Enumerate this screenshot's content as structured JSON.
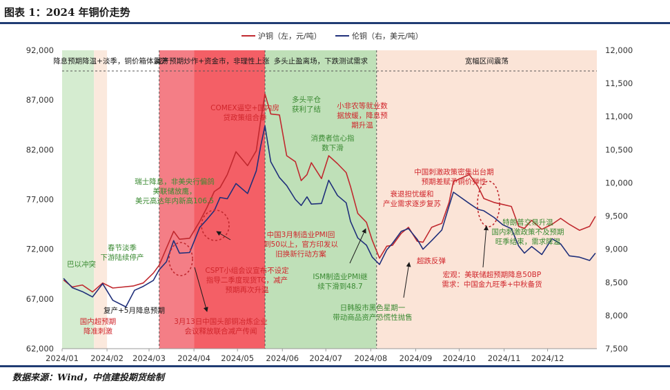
{
  "title": "图表 1：2024 年铜价走势",
  "footer": "数据来源：Wind，中信建投期货绘制",
  "chart_data": {
    "type": "line",
    "series": [
      {
        "name": "沪铜（左，元/吨）",
        "axis": "left",
        "color": "#c0282e",
        "points": [
          [
            "2024-01-02",
            68900
          ],
          [
            "2024-01-08",
            68200
          ],
          [
            "2024-01-15",
            68400
          ],
          [
            "2024-01-22",
            67700
          ],
          [
            "2024-01-29",
            68600
          ],
          [
            "2024-02-05",
            68100
          ],
          [
            "2024-02-19",
            68300
          ],
          [
            "2024-02-26",
            68600
          ],
          [
            "2024-03-04",
            69600
          ],
          [
            "2024-03-08",
            70400
          ],
          [
            "2024-03-13",
            72100
          ],
          [
            "2024-03-18",
            73800
          ],
          [
            "2024-03-22",
            73000
          ],
          [
            "2024-03-29",
            73100
          ],
          [
            "2024-04-05",
            74800
          ],
          [
            "2024-04-10",
            76200
          ],
          [
            "2024-04-15",
            77800
          ],
          [
            "2024-04-19",
            78200
          ],
          [
            "2024-04-24",
            79500
          ],
          [
            "2024-04-30",
            81800
          ],
          [
            "2024-05-08",
            80400
          ],
          [
            "2024-05-14",
            81900
          ],
          [
            "2024-05-17",
            84900
          ],
          [
            "2024-05-20",
            87600
          ],
          [
            "2024-05-24",
            85600
          ],
          [
            "2024-05-30",
            85500
          ],
          [
            "2024-06-04",
            81400
          ],
          [
            "2024-06-10",
            80800
          ],
          [
            "2024-06-14",
            78900
          ],
          [
            "2024-06-18",
            79500
          ],
          [
            "2024-06-21",
            80700
          ],
          [
            "2024-06-28",
            79100
          ],
          [
            "2024-07-03",
            81400
          ],
          [
            "2024-07-09",
            80600
          ],
          [
            "2024-07-15",
            79700
          ],
          [
            "2024-07-18",
            78300
          ],
          [
            "2024-07-23",
            75600
          ],
          [
            "2024-07-29",
            74700
          ],
          [
            "2024-08-02",
            72900
          ],
          [
            "2024-08-07",
            71100
          ],
          [
            "2024-08-12",
            72300
          ],
          [
            "2024-08-16",
            72400
          ],
          [
            "2024-08-22",
            73600
          ],
          [
            "2024-08-27",
            74200
          ],
          [
            "2024-09-02",
            72800
          ],
          [
            "2024-09-06",
            72700
          ],
          [
            "2024-09-12",
            74200
          ],
          [
            "2024-09-19",
            74600
          ],
          [
            "2024-09-24",
            76700
          ],
          [
            "2024-09-27",
            78800
          ],
          [
            "2024-10-08",
            79500
          ],
          [
            "2024-10-14",
            78300
          ],
          [
            "2024-10-18",
            77100
          ],
          [
            "2024-10-25",
            76700
          ],
          [
            "2024-10-31",
            76500
          ],
          [
            "2024-11-06",
            76300
          ],
          [
            "2024-11-11",
            74300
          ],
          [
            "2024-11-15",
            74100
          ],
          [
            "2024-11-20",
            74900
          ],
          [
            "2024-11-27",
            74000
          ],
          [
            "2024-12-04",
            74500
          ],
          [
            "2024-12-10",
            75100
          ],
          [
            "2024-12-16",
            74500
          ],
          [
            "2024-12-23",
            73900
          ],
          [
            "2024-12-30",
            74300
          ],
          [
            "2025-01-03",
            75300
          ]
        ]
      },
      {
        "name": "伦铜（右，美元/吨）",
        "axis": "right",
        "color": "#1f2f7a",
        "points": [
          [
            "2024-01-02",
            8560
          ],
          [
            "2024-01-08",
            8420
          ],
          [
            "2024-01-15",
            8360
          ],
          [
            "2024-01-22",
            8280
          ],
          [
            "2024-01-29",
            8480
          ],
          [
            "2024-02-05",
            8230
          ],
          [
            "2024-02-14",
            8130
          ],
          [
            "2024-02-20",
            8380
          ],
          [
            "2024-02-26",
            8440
          ],
          [
            "2024-03-04",
            8530
          ],
          [
            "2024-03-08",
            8690
          ],
          [
            "2024-03-13",
            8810
          ],
          [
            "2024-03-18",
            9130
          ],
          [
            "2024-03-22",
            8940
          ],
          [
            "2024-03-29",
            8950
          ],
          [
            "2024-04-05",
            9330
          ],
          [
            "2024-04-10",
            9450
          ],
          [
            "2024-04-15",
            9580
          ],
          [
            "2024-04-19",
            9780
          ],
          [
            "2024-04-24",
            9760
          ],
          [
            "2024-04-30",
            9990
          ],
          [
            "2024-05-08",
            9840
          ],
          [
            "2024-05-14",
            10180
          ],
          [
            "2024-05-17",
            10550
          ],
          [
            "2024-05-20",
            10860
          ],
          [
            "2024-05-24",
            10320
          ],
          [
            "2024-05-30",
            10080
          ],
          [
            "2024-06-04",
            9960
          ],
          [
            "2024-06-10",
            9750
          ],
          [
            "2024-06-14",
            9660
          ],
          [
            "2024-06-18",
            9790
          ],
          [
            "2024-06-21",
            9680
          ],
          [
            "2024-06-28",
            9690
          ],
          [
            "2024-07-03",
            10040
          ],
          [
            "2024-07-09",
            9810
          ],
          [
            "2024-07-15",
            9700
          ],
          [
            "2024-07-18",
            9420
          ],
          [
            "2024-07-23",
            9170
          ],
          [
            "2024-07-29",
            9060
          ],
          [
            "2024-08-02",
            8880
          ],
          [
            "2024-08-07",
            8770
          ],
          [
            "2024-08-12",
            8990
          ],
          [
            "2024-08-16",
            9090
          ],
          [
            "2024-08-22",
            9270
          ],
          [
            "2024-08-27",
            9310
          ],
          [
            "2024-09-02",
            9150
          ],
          [
            "2024-09-06",
            9000
          ],
          [
            "2024-09-12",
            9130
          ],
          [
            "2024-09-19",
            9290
          ],
          [
            "2024-09-24",
            9650
          ],
          [
            "2024-09-27",
            9860
          ],
          [
            "2024-10-08",
            9690
          ],
          [
            "2024-10-14",
            9600
          ],
          [
            "2024-10-18",
            9580
          ],
          [
            "2024-10-25",
            9480
          ],
          [
            "2024-10-31",
            9370
          ],
          [
            "2024-11-06",
            9310
          ],
          [
            "2024-11-11",
            9050
          ],
          [
            "2024-11-15",
            8940
          ],
          [
            "2024-11-20",
            9040
          ],
          [
            "2024-11-27",
            8920
          ],
          [
            "2024-12-04",
            9160
          ],
          [
            "2024-12-10",
            9080
          ],
          [
            "2024-12-16",
            8900
          ],
          [
            "2024-12-23",
            8880
          ],
          [
            "2024-12-30",
            8830
          ],
          [
            "2025-01-03",
            8940
          ]
        ]
      }
    ],
    "y_left": {
      "min": 62000,
      "max": 92000,
      "ticks": [
        62000,
        67000,
        72000,
        77000,
        82000,
        87000,
        92000
      ],
      "tick_labels": [
        "62,000",
        "67,000",
        "72,000",
        "77,000",
        "82,000",
        "87,000",
        "92,000"
      ]
    },
    "y_right": {
      "min": 7500,
      "max": 12000,
      "ticks": [
        7500,
        8000,
        8500,
        9000,
        9500,
        10000,
        10500,
        11000,
        11500,
        12000
      ],
      "tick_labels": [
        "7,500",
        "8,000",
        "8,500",
        "9,000",
        "9,500",
        "10,000",
        "10,500",
        "11,000",
        "11,500",
        "12,000"
      ]
    },
    "x_axis": {
      "start": "2024-01-01",
      "end": "2025-01-04",
      "ticks": [
        {
          "date": "2024-01-01",
          "label": "2024/01"
        },
        {
          "date": "2024-02-01",
          "label": "2024/02"
        },
        {
          "date": "2024-03-01",
          "label": "2024/03"
        },
        {
          "date": "2024-04-01",
          "label": "2024/04"
        },
        {
          "date": "2024-05-01",
          "label": "2024/05"
        },
        {
          "date": "2024-06-01",
          "label": "2024/06"
        },
        {
          "date": "2024-07-01",
          "label": "2024/07"
        },
        {
          "date": "2024-08-01",
          "label": "2024/08"
        },
        {
          "date": "2024-09-01",
          "label": "2024/09"
        },
        {
          "date": "2024-10-01",
          "label": "2024/10"
        },
        {
          "date": "2024-11-01",
          "label": "2024/11"
        },
        {
          "date": "2024-12-01",
          "label": "2024/12"
        }
      ]
    },
    "phases": [
      {
        "start": "2024-01-01",
        "end": "2024-03-08",
        "label": "降息预期降温+淡季，铜价箱体震荡"
      },
      {
        "start": "2024-03-08",
        "end": "2024-05-20",
        "label": "减产预期炒作+资金市，非理性上涨"
      },
      {
        "start": "2024-05-20",
        "end": "2024-08-05",
        "label": "多头止盈离场，下跌测试需求"
      },
      {
        "start": "2024-08-05",
        "end": "2025-01-04",
        "label": "宽幅区间震荡"
      }
    ],
    "bands": [
      {
        "start": "2024-01-01",
        "end": "2024-01-23",
        "color": "#d5ecd0"
      },
      {
        "start": "2024-01-23",
        "end": "2024-02-01",
        "color": "#fbe9dd"
      },
      {
        "start": "2024-03-08",
        "end": "2024-04-01",
        "color": "#f47e86"
      },
      {
        "start": "2024-04-01",
        "end": "2024-05-20",
        "color": "#f45f66"
      },
      {
        "start": "2024-05-20",
        "end": "2024-08-05",
        "color": "#bfe0b8"
      },
      {
        "start": "2024-08-05",
        "end": "2025-01-04",
        "color": "#fbe4d7"
      }
    ],
    "annotations": [
      {
        "lines": [
          "巴以冲突"
        ],
        "color": "#3a8a32"
      },
      {
        "lines": [
          "春节淡季",
          "下游陆续停产"
        ],
        "color": "#3a8a32"
      },
      {
        "lines": [
          "国内超预期",
          "降准刺激"
        ],
        "color": "#d0262c"
      },
      {
        "lines": [
          "复产+5月降息预期"
        ],
        "color": "#1a1a1a"
      },
      {
        "lines": [
          "瑞士降息，非美央行偏鸽",
          "美联储放鹰，",
          "美元高达年内新高106.5"
        ],
        "color": "#3a8a32"
      },
      {
        "lines": [
          "CSPT小组会议宣布不设定",
          "指导二季度现货TC，减产",
          "预期再次升温"
        ],
        "color": "#d0262c"
      },
      {
        "lines": [
          "3月13日中国头部铜冶炼企业",
          "会议释放联合减产传闻"
        ],
        "color": "#d0262c"
      },
      {
        "lines": [
          "COMEX逼空+国内房",
          "贷政策组合拳"
        ],
        "color": "#d0262c"
      },
      {
        "lines": [
          "中国3月制造业PMI回",
          "到50以上，官方印发以",
          "旧换新行动方案"
        ],
        "color": "#d0262c"
      },
      {
        "lines": [
          "多头平仓",
          "获利了结"
        ],
        "color": "#3a8a32"
      },
      {
        "lines": [
          "消费者信心指",
          "数下滑"
        ],
        "color": "#3a8a32"
      },
      {
        "lines": [
          "小非农等就业数",
          "据放缓，降息预",
          "期升温"
        ],
        "color": "#d0262c"
      },
      {
        "lines": [
          "衰退担忧缓和",
          "产业需求逐步复苏"
        ],
        "color": "#d0262c"
      },
      {
        "lines": [
          "ISM制造业PMI继",
          "续下滑到48.7"
        ],
        "color": "#3a8a32"
      },
      {
        "lines": [
          "超跌反弹"
        ],
        "color": "#d0262c"
      },
      {
        "lines": [
          "日韩股市黑色星期一",
          "带动商品资产恐慌性抛售"
        ],
        "color": "#3a8a32"
      },
      {
        "lines": [
          "中国刺激政策密集出台期",
          "预期差赋予铜价弹性"
        ],
        "color": "#d0262c"
      },
      {
        "lines": [
          "宏观：美联储超预期降息50BP",
          "需求：中国金九旺季+中秋备货"
        ],
        "color": "#d0262c"
      },
      {
        "lines": [
          "特朗普交易升温",
          "国内刺激政策不及预期",
          "旺季结束，需求降温"
        ],
        "color": "#3a8a32"
      }
    ]
  }
}
